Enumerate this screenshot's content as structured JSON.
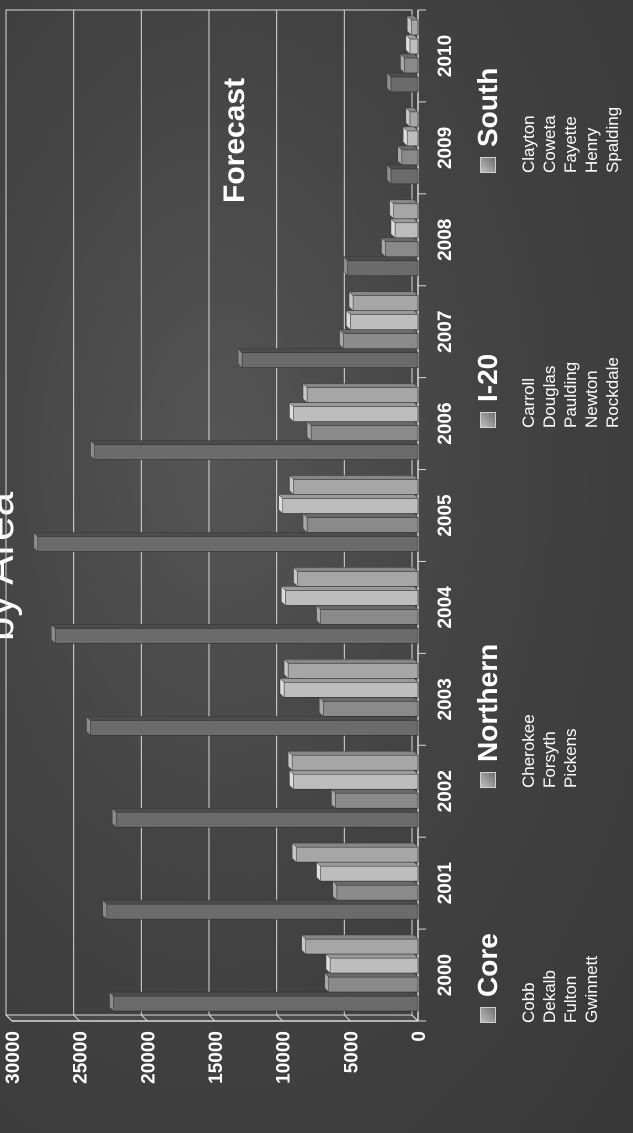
{
  "title": "by Area",
  "forecast_label": "Forecast",
  "chart_data": {
    "type": "bar",
    "categories": [
      "2000",
      "2001",
      "2002",
      "2003",
      "2004",
      "2005",
      "2006",
      "2007",
      "2008",
      "2009",
      "2010"
    ],
    "series": [
      {
        "name": "Core",
        "values": [
          22500,
          23000,
          22300,
          24200,
          26800,
          28100,
          23900,
          13000,
          5200,
          2000,
          2000
        ]
      },
      {
        "name": "Northern",
        "values": [
          6600,
          6000,
          6100,
          7000,
          7200,
          8200,
          7900,
          5500,
          2400,
          1200,
          1000
        ]
      },
      {
        "name": "I-20",
        "values": [
          6500,
          7200,
          9200,
          9900,
          9800,
          10000,
          9200,
          5000,
          1700,
          800,
          600
        ]
      },
      {
        "name": "South",
        "values": [
          8300,
          9000,
          9300,
          9600,
          8900,
          9200,
          8200,
          4800,
          1800,
          600,
          500
        ]
      }
    ],
    "y_ticks": [
      "0",
      "5000",
      "10000",
      "15000",
      "20000",
      "25000",
      "30000"
    ],
    "ylim": [
      0,
      30000
    ],
    "grid": true,
    "legend_position": "bottom"
  },
  "legend": [
    {
      "name": "Core",
      "counties": [
        "Cobb",
        "Dekalb",
        "Fulton",
        "Gwinnett"
      ]
    },
    {
      "name": "Northern",
      "counties": [
        "Cherokee",
        "Forsyth",
        "Pickens"
      ]
    },
    {
      "name": "I-20",
      "counties": [
        "Carroll",
        "Douglas",
        "Paulding",
        "Newton",
        "Rockdale"
      ]
    },
    {
      "name": "South",
      "counties": [
        "Clayton",
        "Coweta",
        "Fayette",
        "Henry",
        "Spalding"
      ]
    }
  ],
  "colors": {
    "background": "#404040",
    "core": "#6b6b6b",
    "northern": "#8a8a8a",
    "i20": "#bdbdbd",
    "south": "#a6a6a6",
    "grid": "#d8d8d8",
    "text": "#ffffff"
  }
}
